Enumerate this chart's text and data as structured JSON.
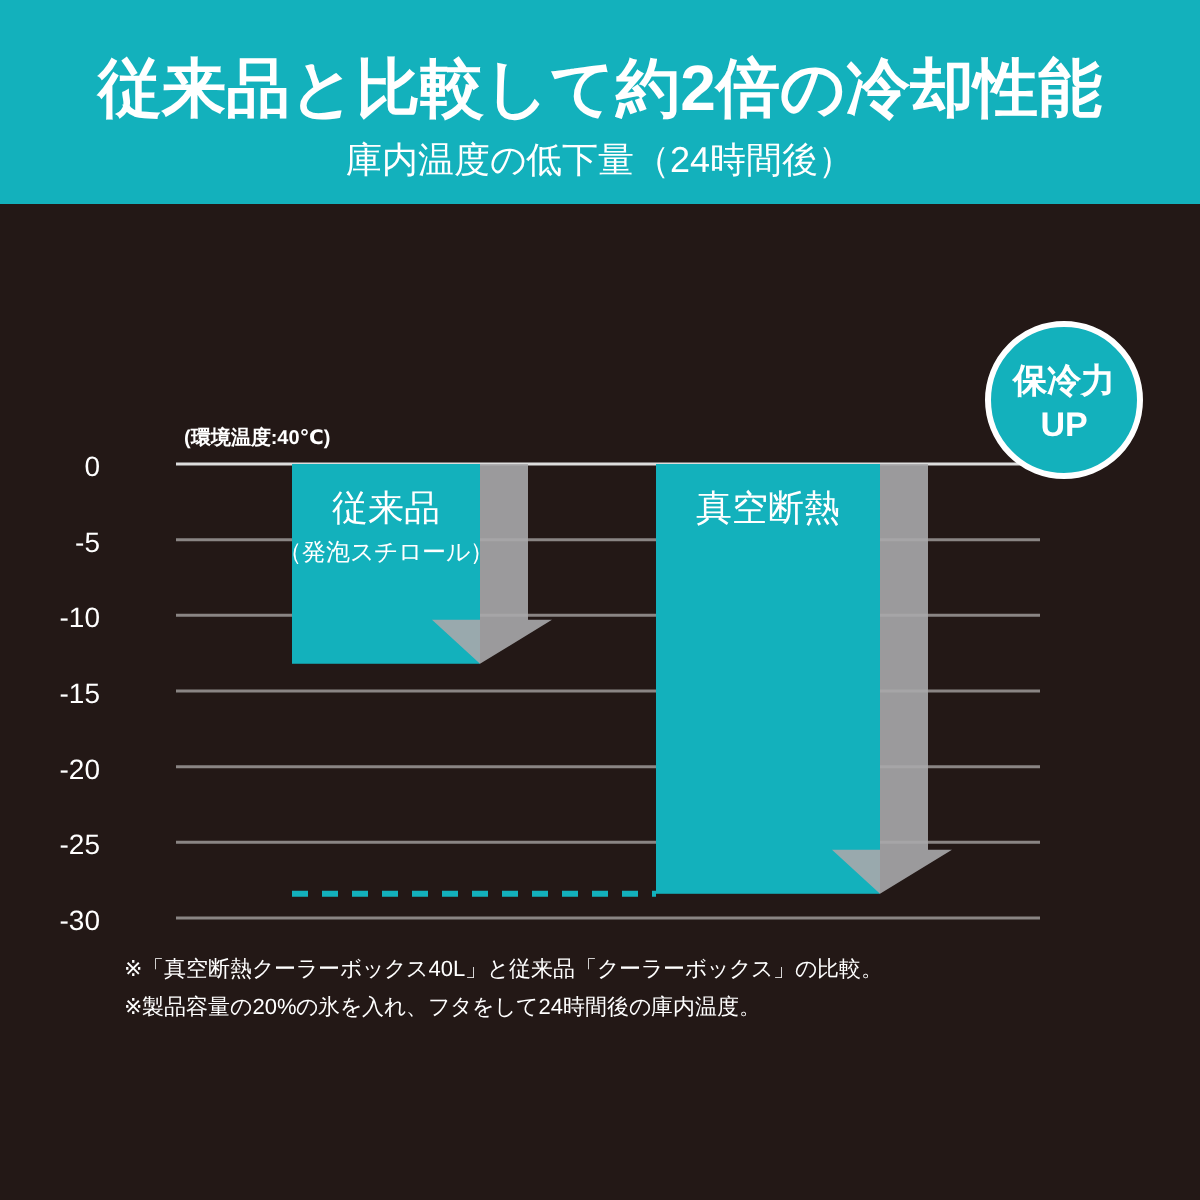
{
  "chart_data": {
    "type": "bar",
    "title": "従来品と比較して約2倍の冷却性能",
    "subtitle": "庫内温度の低下量（24時間後）",
    "ylabel": "(環境温度:40℃)",
    "categories": [
      "従来品（発泡スチロール）",
      "真空断熱"
    ],
    "values": [
      -13.2,
      -28.4
    ],
    "color": "#13b1bc",
    "ylim": [
      -30,
      0
    ],
    "yticks": [
      0,
      -5,
      -10,
      -15,
      -20,
      -25,
      -30
    ],
    "grid": "y",
    "ref_lines": [
      {
        "axis": "y",
        "value": -28.4,
        "color": "#13b1bc",
        "line_style": "dashed"
      }
    ],
    "annotations": [
      "保冷力\nUP",
      "※「真空断熱クーラーボックス40L」と従来品「クーラーボックス」の比較。",
      "※製品容量の20%の氷を入れ、フタをして24時間後の庫内温度。"
    ]
  }
}
